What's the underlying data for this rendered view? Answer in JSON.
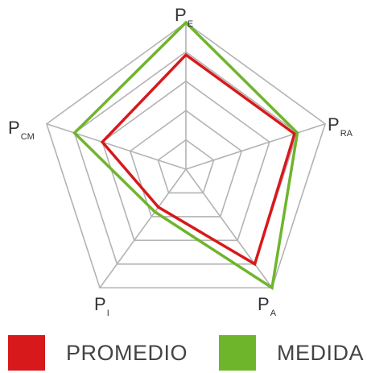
{
  "chart_data": {
    "type": "radar",
    "axes": [
      {
        "main": "P",
        "sub": "E"
      },
      {
        "main": "P",
        "sub": "RA"
      },
      {
        "main": "P",
        "sub": "A"
      },
      {
        "main": "P",
        "sub": "I"
      },
      {
        "main": "P",
        "sub": "CM"
      }
    ],
    "rings": 5,
    "range": [
      0,
      5
    ],
    "grid": true,
    "legend_position": "bottom",
    "series": [
      {
        "name": "PROMEDIO",
        "color": "#d7191c",
        "values": [
          3.9,
          3.9,
          4.0,
          1.6,
          3.0
        ]
      },
      {
        "name": "MEDIDA",
        "color": "#6fb52c",
        "values": [
          5.0,
          4.0,
          5.0,
          1.8,
          4.0
        ]
      }
    ]
  },
  "legend": {
    "items": [
      {
        "label": "PROMEDIO",
        "color": "#d7191c"
      },
      {
        "label": "MEDIDA",
        "color": "#6fb52c"
      }
    ]
  }
}
